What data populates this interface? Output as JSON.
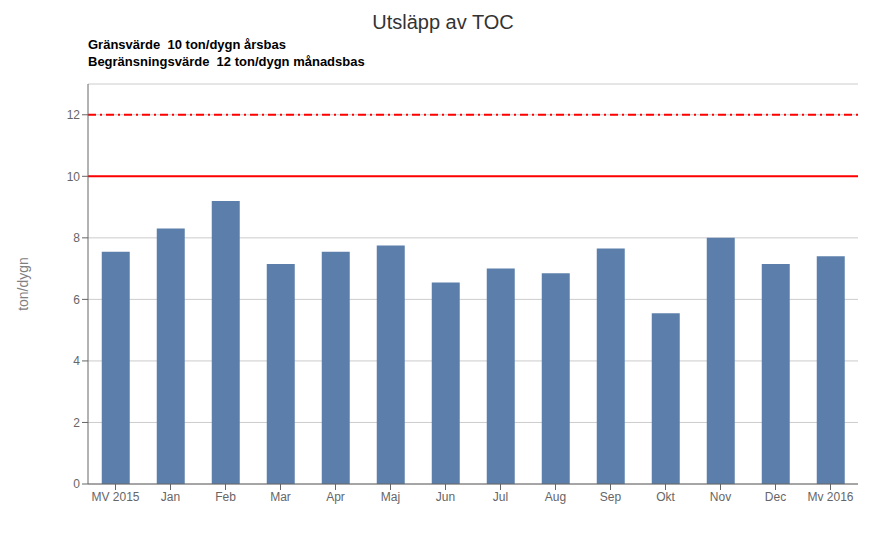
{
  "chart_data": {
    "type": "bar",
    "title": "Utsläpp av TOC",
    "ylabel": "ton/dygn",
    "annotations": [
      "Gränsvärde  10 ton/dygn årsbas",
      "Begränsningsvärde  12 ton/dygn månadsbas"
    ],
    "categories": [
      "MV 2015",
      "Jan",
      "Feb",
      "Mar",
      "Apr",
      "Maj",
      "Jun",
      "Jul",
      "Aug",
      "Sep",
      "Okt",
      "Nov",
      "Dec",
      "Mv 2016"
    ],
    "values": [
      7.55,
      8.3,
      9.2,
      7.15,
      7.55,
      7.75,
      6.55,
      7.0,
      6.85,
      7.65,
      5.55,
      8.0,
      7.15,
      7.4
    ],
    "color": "#5b7faa",
    "ylim": [
      0,
      13
    ],
    "yticks": [
      0,
      2,
      4,
      6,
      8,
      10,
      12
    ],
    "grid": true,
    "hlines": [
      {
        "value": 10,
        "color": "#ff0000",
        "line_style": "solid"
      },
      {
        "value": 12,
        "color": "#ff0000",
        "line_style": "dashdot"
      }
    ]
  }
}
